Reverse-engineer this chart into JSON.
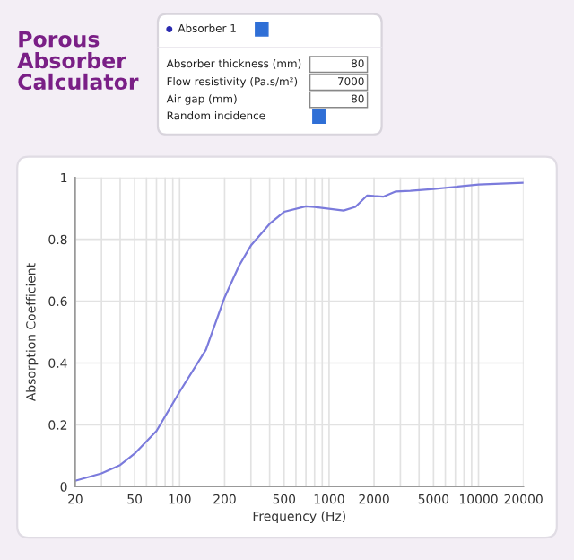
{
  "chart_data": {
    "type": "line",
    "title": "Porous Absorber Calculator",
    "xlabel": "Frequency (Hz)",
    "ylabel": "Absorption Coefficient",
    "log": "x",
    "annotations": [
      "Absorber 1",
      "Absorber thickness (mm)",
      "80",
      "Flow resistivity (Pa.s/m²)",
      "7000",
      "Air gap (mm)",
      "80",
      "Random incidence"
    ],
    "x": [
      20,
      30,
      40,
      50,
      70,
      100,
      150,
      200,
      250,
      300,
      400,
      500,
      700,
      800,
      1000,
      1250,
      1500,
      1800,
      2000,
      2300,
      2800,
      3500,
      5000,
      10000,
      20000
    ],
    "series": [
      {
        "color": "#7b7bdc",
        "values": [
          0.019,
          0.043,
          0.07,
          0.107,
          0.18,
          0.307,
          0.443,
          0.612,
          0.715,
          0.78,
          0.85,
          0.889,
          0.907,
          0.905,
          0.899,
          0.893,
          0.905,
          0.942,
          0.94,
          0.938,
          0.955,
          0.957,
          0.963,
          0.977,
          0.983
        ]
      }
    ],
    "xlim": [
      20,
      20000
    ],
    "ylim": [
      0,
      1
    ],
    "xticks": [
      20,
      {
        "value": 30,
        "label": null
      },
      {
        "value": 40,
        "label": null
      },
      50,
      {
        "value": 60,
        "label": null
      },
      {
        "value": 70,
        "label": null
      },
      {
        "value": 80,
        "label": null
      },
      {
        "value": 90,
        "label": null
      },
      100,
      200,
      {
        "value": 300,
        "label": null
      },
      {
        "value": 400,
        "label": null
      },
      500,
      {
        "value": 600,
        "label": null
      },
      {
        "value": 700,
        "label": null
      },
      {
        "value": 800,
        "label": null
      },
      {
        "value": 900,
        "label": null
      },
      1000,
      2000,
      {
        "value": 3000,
        "label": null
      },
      {
        "value": 4000,
        "label": null
      },
      5000,
      {
        "value": 6000,
        "label": null
      },
      {
        "value": 7000,
        "label": null
      },
      {
        "value": 8000,
        "label": null
      },
      {
        "value": 9000,
        "label": null
      },
      10000,
      20000
    ],
    "yticks": [
      0,
      0.2,
      0.4,
      0.6,
      0.8,
      1
    ],
    "grid": true,
    "marker": "none",
    "line_style": "solid"
  }
}
